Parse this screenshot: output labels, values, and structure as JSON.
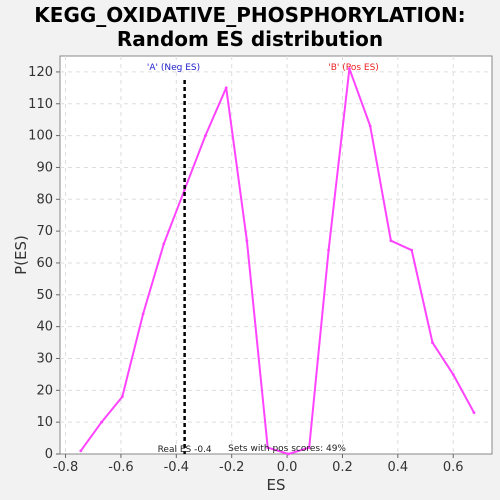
{
  "chart_data": {
    "type": "line",
    "title_lines": [
      "KEGG_OXIDATIVE_PHOSPHORYLATION:",
      "Random ES distribution"
    ],
    "xlabel": "ES",
    "ylabel": "P(ES)",
    "xlim": [
      -0.82,
      0.74
    ],
    "ylim": [
      0,
      125
    ],
    "xticks": [
      -0.8,
      -0.6,
      -0.4,
      -0.2,
      0.0,
      0.2,
      0.4,
      0.6
    ],
    "xtick_labels": [
      "-0.8",
      "-0.6",
      "-0.4",
      "-0.2",
      "0.0",
      "0.2",
      "0.4",
      "0.6"
    ],
    "yticks": [
      0,
      10,
      20,
      30,
      40,
      50,
      60,
      70,
      80,
      90,
      100,
      110,
      120
    ],
    "ytick_labels": [
      "0",
      "10",
      "20",
      "30",
      "40",
      "50",
      "60",
      "70",
      "80",
      "90",
      "100",
      "110",
      "120"
    ],
    "grid": true,
    "series": [
      {
        "color": "#ff44ff",
        "x": [
          -0.745,
          -0.67,
          -0.595,
          -0.52,
          -0.445,
          -0.37,
          -0.295,
          -0.22,
          -0.145,
          -0.07,
          0.005,
          0.08,
          0.15,
          0.225,
          0.3,
          0.375,
          0.45,
          0.525,
          0.6,
          0.675
        ],
        "y": [
          1,
          10,
          18,
          44,
          66,
          83,
          100,
          115,
          67,
          2,
          0,
          2,
          64,
          121,
          103,
          67,
          64,
          35,
          25,
          13
        ]
      }
    ],
    "real_es": {
      "value": -0.37,
      "label": "Real ES -0.4",
      "color": "#000000"
    },
    "annotations": {
      "neg_label": "'A' (Neg ES)",
      "neg_color": "#2222cc",
      "neg_x": -0.41,
      "pos_label": "'B' (Pos ES)",
      "pos_color": "#ee2222",
      "pos_x": 0.24,
      "pos_scores_note": "Sets with pos scores: 49%"
    }
  }
}
